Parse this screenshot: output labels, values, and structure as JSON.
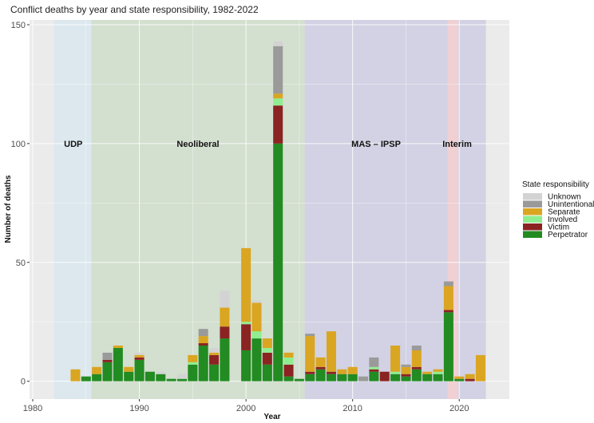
{
  "chart_data": {
    "type": "bar",
    "stacked": true,
    "title": "Conflict deaths by year and state responsibility, 1982-2022",
    "xlabel": "Year",
    "ylabel": "Number of deaths",
    "xlim": [
      1979.7,
      2024.7
    ],
    "ylim": [
      -7.5,
      152
    ],
    "x_ticks": [
      1980,
      1990,
      2000,
      2010,
      2020
    ],
    "y_ticks": [
      0,
      50,
      100,
      150
    ],
    "grid": true,
    "legend": {
      "title": "State responsibility",
      "placement": "right",
      "entries": [
        "Unknown",
        "Unintentional",
        "Separate",
        "Involved",
        "Victim",
        "Perpetrator"
      ]
    },
    "colors": {
      "Perpetrator": "#228b22",
      "Victim": "#8b2323",
      "Involved": "#90ee90",
      "Separate": "#daa520",
      "Unintentional": "#9a9a9a",
      "Unknown": "#d3d3d3",
      "panel_background": "#ebebeb"
    },
    "regions": [
      {
        "label": "UDP",
        "start": 1982,
        "end": 1985.5,
        "color": "#dce8ee"
      },
      {
        "label": "Neoliberal",
        "start": 1985.5,
        "end": 2005.5,
        "color": "#d3dfcf"
      },
      {
        "label": "MAS – IPSP",
        "start": 2005.5,
        "end": 2022.5,
        "color": "#d2d2e4"
      },
      {
        "label": "Interim",
        "start": 2018.9,
        "end": 2019.9,
        "color": "#f3cfd0"
      }
    ],
    "stack_order": [
      "Perpetrator",
      "Victim",
      "Involved",
      "Separate",
      "Unintentional",
      "Unknown"
    ],
    "data": [
      {
        "year": 1984,
        "Separate": 5
      },
      {
        "year": 1985,
        "Perpetrator": 2
      },
      {
        "year": 1986,
        "Perpetrator": 3,
        "Separate": 3
      },
      {
        "year": 1987,
        "Perpetrator": 8,
        "Victim": 1,
        "Unintentional": 3
      },
      {
        "year": 1988,
        "Perpetrator": 14,
        "Separate": 1
      },
      {
        "year": 1989,
        "Perpetrator": 4,
        "Separate": 2
      },
      {
        "year": 1990,
        "Perpetrator": 9,
        "Victim": 1,
        "Separate": 1,
        "Unknown": 1
      },
      {
        "year": 1991,
        "Perpetrator": 4
      },
      {
        "year": 1992,
        "Perpetrator": 3,
        "Unknown": 1
      },
      {
        "year": 1993,
        "Perpetrator": 1
      },
      {
        "year": 1994,
        "Perpetrator": 1,
        "Unknown": 2
      },
      {
        "year": 1995,
        "Perpetrator": 7,
        "Involved": 1,
        "Separate": 3
      },
      {
        "year": 1996,
        "Perpetrator": 15,
        "Victim": 1,
        "Separate": 3,
        "Unintentional": 3
      },
      {
        "year": 1997,
        "Perpetrator": 7,
        "Victim": 4,
        "Separate": 1,
        "Unknown": 2
      },
      {
        "year": 1998,
        "Perpetrator": 18,
        "Victim": 5,
        "Separate": 8,
        "Unknown": 7
      },
      {
        "year": 1999,
        "Perpetrator": 0
      },
      {
        "year": 2000,
        "Perpetrator": 13,
        "Victim": 11,
        "Involved": 1,
        "Separate": 31
      },
      {
        "year": 2001,
        "Perpetrator": 18,
        "Involved": 3,
        "Separate": 12,
        "Unknown": 1
      },
      {
        "year": 2002,
        "Perpetrator": 7,
        "Victim": 5,
        "Involved": 2,
        "Separate": 4
      },
      {
        "year": 2003,
        "Perpetrator": 100,
        "Victim": 16,
        "Involved": 3,
        "Separate": 2,
        "Unintentional": 20,
        "Unknown": 2
      },
      {
        "year": 2004,
        "Perpetrator": 2,
        "Victim": 5,
        "Involved": 3,
        "Separate": 2
      },
      {
        "year": 2005,
        "Perpetrator": 1
      },
      {
        "year": 2006,
        "Perpetrator": 3,
        "Victim": 1,
        "Separate": 15,
        "Unintentional": 1
      },
      {
        "year": 2007,
        "Perpetrator": 5,
        "Victim": 1,
        "Separate": 4
      },
      {
        "year": 2008,
        "Perpetrator": 3,
        "Victim": 1,
        "Separate": 17
      },
      {
        "year": 2009,
        "Perpetrator": 3,
        "Separate": 2
      },
      {
        "year": 2010,
        "Perpetrator": 3,
        "Separate": 3
      },
      {
        "year": 2011,
        "Perpetrator": 0,
        "Unintentional": 2
      },
      {
        "year": 2012,
        "Perpetrator": 4,
        "Victim": 1,
        "Involved": 1,
        "Unintentional": 4
      },
      {
        "year": 2013,
        "Perpetrator": 0,
        "Victim": 4
      },
      {
        "year": 2014,
        "Perpetrator": 3,
        "Involved": 1,
        "Separate": 11
      },
      {
        "year": 2015,
        "Perpetrator": 2,
        "Victim": 1,
        "Separate": 3,
        "Unintentional": 1
      },
      {
        "year": 2016,
        "Perpetrator": 5,
        "Victim": 1,
        "Separate": 7,
        "Unintentional": 2
      },
      {
        "year": 2017,
        "Perpetrator": 3,
        "Separate": 1
      },
      {
        "year": 2018,
        "Perpetrator": 3,
        "Involved": 1,
        "Separate": 1
      },
      {
        "year": 2019,
        "Perpetrator": 29,
        "Victim": 1,
        "Separate": 10,
        "Unintentional": 2
      },
      {
        "year": 2020,
        "Perpetrator": 1,
        "Separate": 1
      },
      {
        "year": 2021,
        "Perpetrator": 0,
        "Victim": 1,
        "Separate": 2
      },
      {
        "year": 2022,
        "Separate": 11
      }
    ]
  }
}
